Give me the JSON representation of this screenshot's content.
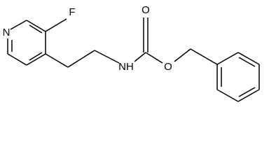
{
  "atoms": {
    "pyridine_n": "N",
    "fluorine": "F",
    "amine": "NH",
    "carbonyl_o": "O",
    "ester_o": "O"
  }
}
